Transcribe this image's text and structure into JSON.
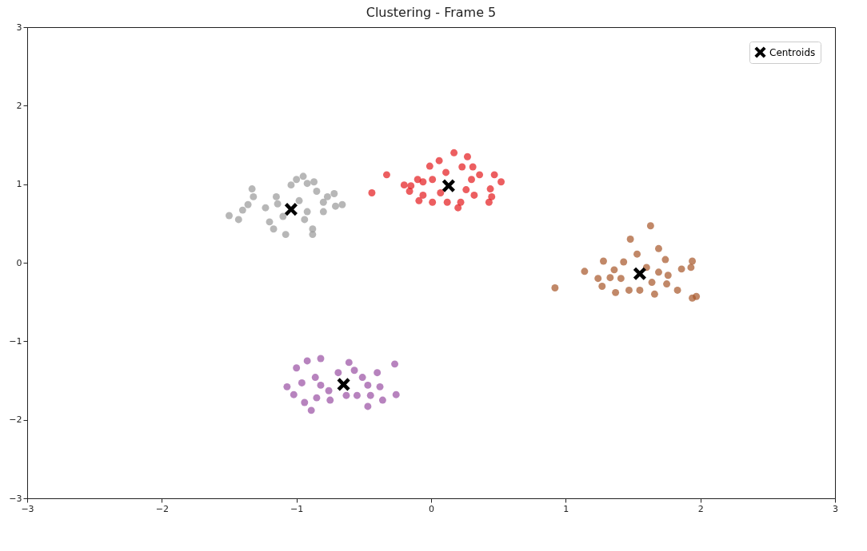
{
  "chart_data": {
    "type": "scatter",
    "title": "Clustering - Frame 5",
    "xlim": [
      -3,
      3
    ],
    "ylim": [
      -3,
      3
    ],
    "xticks": [
      -3,
      -2,
      -1,
      0,
      1,
      2,
      3
    ],
    "yticks": [
      -3,
      -2,
      -1,
      0,
      1,
      2,
      3
    ],
    "legend": "top right",
    "series": [
      {
        "color": "#999999",
        "marker": "circle",
        "x": [
          -1.5,
          -1.43,
          -1.4,
          -1.36,
          -1.33,
          -1.32,
          -1.23,
          -1.2,
          -1.17,
          -1.15,
          -1.08,
          -1.04,
          -1.0,
          -0.95,
          -0.92,
          -0.87,
          -0.88,
          -0.88,
          -0.94,
          -0.98,
          -0.8,
          -0.8,
          -0.77,
          -0.72,
          -0.71,
          -0.66,
          -1.1,
          -1.14,
          -0.92,
          -0.85
        ],
        "values": [
          0.6,
          0.55,
          0.67,
          0.74,
          0.94,
          0.84,
          0.7,
          0.52,
          0.43,
          0.84,
          0.36,
          0.99,
          1.06,
          1.1,
          1.01,
          1.03,
          0.43,
          0.36,
          0.55,
          0.79,
          0.65,
          0.77,
          0.84,
          0.88,
          0.72,
          0.74,
          0.59,
          0.75,
          0.65,
          0.91
        ]
      },
      {
        "color": "#e41a1c",
        "marker": "circle",
        "x": [
          -0.44,
          -0.33,
          -0.2,
          -0.16,
          -0.1,
          -0.06,
          -0.01,
          0.06,
          0.17,
          0.27,
          0.31,
          0.36,
          0.47,
          0.52,
          0.44,
          0.45,
          0.43,
          0.32,
          0.26,
          0.2,
          0.22,
          0.12,
          0.01,
          -0.09,
          0.23,
          0.01,
          -0.06,
          0.11,
          0.3,
          -0.15,
          0.07
        ],
        "values": [
          0.89,
          1.12,
          0.99,
          0.91,
          1.06,
          0.86,
          1.23,
          1.3,
          1.4,
          1.35,
          1.22,
          1.12,
          1.12,
          1.03,
          0.94,
          0.84,
          0.77,
          0.86,
          0.93,
          0.7,
          0.77,
          0.77,
          0.77,
          0.79,
          1.22,
          1.06,
          1.03,
          1.15,
          1.06,
          0.98,
          0.89
        ]
      },
      {
        "color": "#a65628",
        "marker": "circle",
        "x": [
          0.92,
          1.14,
          1.24,
          1.27,
          1.28,
          1.37,
          1.36,
          1.48,
          1.63,
          1.69,
          1.74,
          1.53,
          1.43,
          1.47,
          1.55,
          1.66,
          1.64,
          1.76,
          1.75,
          1.83,
          1.86,
          1.94,
          1.93,
          1.94,
          1.97,
          1.33,
          1.6,
          1.69,
          1.41
        ],
        "values": [
          -0.32,
          -0.11,
          -0.2,
          -0.3,
          0.02,
          -0.38,
          -0.09,
          0.3,
          0.47,
          0.18,
          0.04,
          0.11,
          0.01,
          -0.35,
          -0.35,
          -0.4,
          -0.25,
          -0.16,
          -0.27,
          -0.35,
          -0.08,
          0.02,
          -0.06,
          -0.45,
          -0.43,
          -0.19,
          -0.06,
          -0.12,
          -0.2
        ]
      },
      {
        "color": "#984ea3",
        "marker": "circle",
        "x": [
          -1.07,
          -1.02,
          -1.0,
          -0.92,
          -0.82,
          -0.94,
          -0.89,
          -0.85,
          -0.86,
          -0.76,
          -0.75,
          -0.69,
          -0.61,
          -0.57,
          -0.55,
          -0.51,
          -0.47,
          -0.47,
          -0.4,
          -0.38,
          -0.36,
          -0.27,
          -0.26,
          -0.45,
          -0.63,
          -0.82,
          -0.96
        ],
        "values": [
          -1.58,
          -1.68,
          -1.34,
          -1.25,
          -1.22,
          -1.78,
          -1.88,
          -1.72,
          -1.46,
          -1.63,
          -1.75,
          -1.4,
          -1.27,
          -1.37,
          -1.69,
          -1.46,
          -1.56,
          -1.83,
          -1.4,
          -1.58,
          -1.75,
          -1.29,
          -1.68,
          -1.69,
          -1.69,
          -1.56,
          -1.53
        ]
      },
      {
        "name": "Centroids",
        "color": "#000000",
        "marker": "cross",
        "x": [
          -1.04,
          0.13,
          1.55,
          -0.65
        ],
        "values": [
          0.68,
          0.98,
          -0.14,
          -1.55
        ]
      }
    ]
  }
}
